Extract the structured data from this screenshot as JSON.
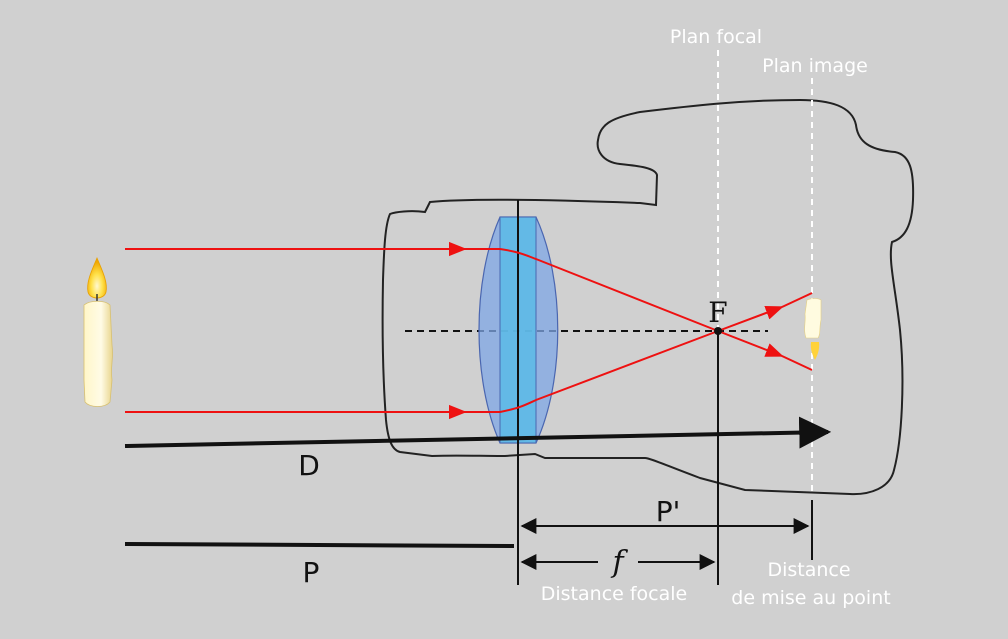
{
  "labels": {
    "plan_focal": "Plan focal",
    "plan_image": "Plan image",
    "focal_point": "F",
    "distance_D": "D",
    "distance_P": "P",
    "distance_P_prime": "P'",
    "focal_symbol": "f",
    "distance_focale": "Distance focale",
    "distance_mise_line1": "Distance",
    "distance_mise_line2": "de mise au point"
  },
  "colors": {
    "background": "#d0d0d0",
    "ray": "#ee1111",
    "outline": "#222222",
    "guide": "#ffffff",
    "lens_fill": "#7fa7e6",
    "lens_core": "#5bbbe6",
    "label": "#ffffff"
  },
  "icons": {
    "candle": "candle-icon",
    "inverted_image": "inverted-candle-image-icon",
    "camera": "camera-outline-icon",
    "lens": "biconvex-lens-icon"
  }
}
